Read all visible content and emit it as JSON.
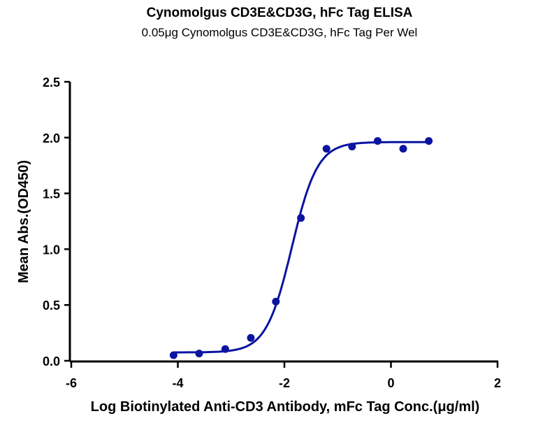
{
  "chart_data": {
    "type": "scatter",
    "title": "Cynomolgus CD3E&CD3G, hFc Tag ELISA",
    "subtitle": "0.05μg Cynomolgus CD3E&CD3G, hFc Tag Per Wel",
    "xlabel": "Log Biotinylated Anti-CD3 Antibody, mFc Tag Conc.(μg/ml)",
    "ylabel": "Mean Abs.(OD450)",
    "xlim": [
      -6,
      2
    ],
    "ylim": [
      0,
      2.5
    ],
    "xticks": [
      "-6",
      "-4",
      "-2",
      "0",
      "2"
    ],
    "yticks": [
      "0.0",
      "0.5",
      "1.0",
      "1.5",
      "2.0",
      "2.5"
    ],
    "grid": false,
    "color": "#0a14a0",
    "series": [
      {
        "x": [
          -4.08,
          -3.6,
          -3.11,
          -2.63,
          -2.16,
          -1.69,
          -1.21,
          -0.73,
          -0.25,
          0.23,
          0.71
        ],
        "y": [
          0.05,
          0.065,
          0.105,
          0.205,
          0.53,
          1.28,
          1.9,
          1.92,
          1.97,
          1.9,
          1.97
        ]
      }
    ],
    "fit": {
      "model": "4PL",
      "bottom": 0.075,
      "top": 1.96,
      "logEC50": -1.86,
      "hill": 1.8
    }
  }
}
